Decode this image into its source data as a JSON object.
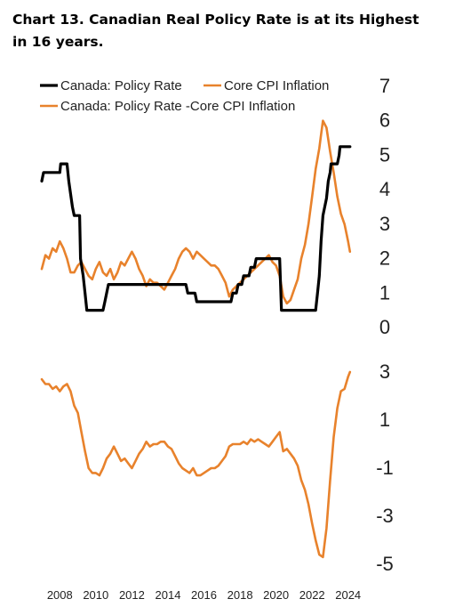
{
  "title": "Chart 13. Canadian Real Policy Rate is at its Highest in 16 years.",
  "colors": {
    "policy": "#000000",
    "core": "#E8822C",
    "real": "#E8822C"
  },
  "chart_data": [
    {
      "type": "line",
      "panel": "top",
      "title": "",
      "ylim": [
        0,
        7
      ],
      "yticks": [
        "0",
        "1",
        "2",
        "3",
        "4",
        "5",
        "6",
        "7"
      ],
      "axis_side": "right",
      "legend_position": "top-left",
      "grid": false,
      "series": [
        {
          "name": "Canada: Policy Rate",
          "color": "#000000",
          "points": [
            [
              2007.0,
              4.25
            ],
            [
              2007.1,
              4.5
            ],
            [
              2007.6,
              4.5
            ],
            [
              2008.0,
              4.5
            ],
            [
              2008.05,
              4.75
            ],
            [
              2008.4,
              4.75
            ],
            [
              2008.5,
              4.25
            ],
            [
              2008.7,
              3.5
            ],
            [
              2008.8,
              3.25
            ],
            [
              2009.1,
              3.25
            ],
            [
              2009.15,
              2.0
            ],
            [
              2009.3,
              1.5
            ],
            [
              2009.4,
              1.0
            ],
            [
              2009.5,
              0.5
            ],
            [
              2009.6,
              0.5
            ],
            [
              2010.4,
              0.5
            ],
            [
              2010.5,
              0.75
            ],
            [
              2010.6,
              1.0
            ],
            [
              2010.7,
              1.25
            ],
            [
              2015.0,
              1.25
            ],
            [
              2015.1,
              1.0
            ],
            [
              2015.5,
              1.0
            ],
            [
              2015.6,
              0.75
            ],
            [
              2017.5,
              0.75
            ],
            [
              2017.6,
              1.0
            ],
            [
              2017.8,
              1.0
            ],
            [
              2017.9,
              1.25
            ],
            [
              2018.1,
              1.25
            ],
            [
              2018.2,
              1.5
            ],
            [
              2018.5,
              1.5
            ],
            [
              2018.6,
              1.75
            ],
            [
              2018.8,
              1.75
            ],
            [
              2018.9,
              2.0
            ],
            [
              2020.2,
              2.0
            ],
            [
              2020.25,
              1.25
            ],
            [
              2020.3,
              0.5
            ],
            [
              2022.2,
              0.5
            ],
            [
              2022.3,
              1.0
            ],
            [
              2022.4,
              1.5
            ],
            [
              2022.5,
              2.5
            ],
            [
              2022.6,
              3.25
            ],
            [
              2022.8,
              3.75
            ],
            [
              2022.9,
              4.25
            ],
            [
              2023.0,
              4.5
            ],
            [
              2023.05,
              4.75
            ],
            [
              2023.4,
              4.75
            ],
            [
              2023.5,
              5.0
            ],
            [
              2023.55,
              5.25
            ],
            [
              2024.1,
              5.25
            ]
          ]
        },
        {
          "name": "Core CPI Inflation",
          "color": "#E8822C",
          "points": [
            [
              2007.0,
              1.7
            ],
            [
              2007.2,
              2.1
            ],
            [
              2007.4,
              2.0
            ],
            [
              2007.6,
              2.3
            ],
            [
              2007.8,
              2.2
            ],
            [
              2008.0,
              2.5
            ],
            [
              2008.2,
              2.3
            ],
            [
              2008.4,
              2.0
            ],
            [
              2008.6,
              1.6
            ],
            [
              2008.8,
              1.6
            ],
            [
              2009.0,
              1.8
            ],
            [
              2009.2,
              1.9
            ],
            [
              2009.4,
              1.7
            ],
            [
              2009.6,
              1.5
            ],
            [
              2009.8,
              1.4
            ],
            [
              2010.0,
              1.7
            ],
            [
              2010.2,
              1.9
            ],
            [
              2010.4,
              1.6
            ],
            [
              2010.6,
              1.5
            ],
            [
              2010.8,
              1.7
            ],
            [
              2011.0,
              1.4
            ],
            [
              2011.2,
              1.6
            ],
            [
              2011.4,
              1.9
            ],
            [
              2011.6,
              1.8
            ],
            [
              2011.8,
              2.0
            ],
            [
              2012.0,
              2.2
            ],
            [
              2012.2,
              2.0
            ],
            [
              2012.4,
              1.7
            ],
            [
              2012.6,
              1.5
            ],
            [
              2012.8,
              1.2
            ],
            [
              2013.0,
              1.4
            ],
            [
              2013.2,
              1.3
            ],
            [
              2013.4,
              1.3
            ],
            [
              2013.6,
              1.2
            ],
            [
              2013.8,
              1.1
            ],
            [
              2014.0,
              1.3
            ],
            [
              2014.2,
              1.5
            ],
            [
              2014.4,
              1.7
            ],
            [
              2014.6,
              2.0
            ],
            [
              2014.8,
              2.2
            ],
            [
              2015.0,
              2.3
            ],
            [
              2015.2,
              2.2
            ],
            [
              2015.4,
              2.0
            ],
            [
              2015.6,
              2.2
            ],
            [
              2015.8,
              2.1
            ],
            [
              2016.0,
              2.0
            ],
            [
              2016.2,
              1.9
            ],
            [
              2016.4,
              1.8
            ],
            [
              2016.6,
              1.8
            ],
            [
              2016.8,
              1.7
            ],
            [
              2017.0,
              1.5
            ],
            [
              2017.2,
              1.3
            ],
            [
              2017.4,
              0.9
            ],
            [
              2017.6,
              1.1
            ],
            [
              2017.8,
              1.2
            ],
            [
              2018.0,
              1.3
            ],
            [
              2018.2,
              1.4
            ],
            [
              2018.4,
              1.5
            ],
            [
              2018.6,
              1.6
            ],
            [
              2018.8,
              1.7
            ],
            [
              2019.0,
              1.8
            ],
            [
              2019.2,
              1.9
            ],
            [
              2019.4,
              2.0
            ],
            [
              2019.6,
              2.1
            ],
            [
              2019.8,
              1.9
            ],
            [
              2020.0,
              1.8
            ],
            [
              2020.2,
              1.5
            ],
            [
              2020.4,
              0.9
            ],
            [
              2020.6,
              0.7
            ],
            [
              2020.8,
              0.8
            ],
            [
              2021.0,
              1.1
            ],
            [
              2021.2,
              1.4
            ],
            [
              2021.4,
              2.0
            ],
            [
              2021.6,
              2.4
            ],
            [
              2021.8,
              3.0
            ],
            [
              2022.0,
              3.8
            ],
            [
              2022.2,
              4.6
            ],
            [
              2022.4,
              5.2
            ],
            [
              2022.5,
              5.6
            ],
            [
              2022.6,
              6.0
            ],
            [
              2022.8,
              5.8
            ],
            [
              2023.0,
              5.1
            ],
            [
              2023.2,
              4.5
            ],
            [
              2023.4,
              3.8
            ],
            [
              2023.6,
              3.3
            ],
            [
              2023.8,
              3.0
            ],
            [
              2024.0,
              2.5
            ],
            [
              2024.1,
              2.2
            ]
          ]
        }
      ]
    },
    {
      "type": "line",
      "panel": "bottom",
      "title": "",
      "ylim": [
        -5,
        3
      ],
      "yticks": [
        "3",
        "1",
        "-1",
        "-3",
        "-5"
      ],
      "axis_side": "right",
      "grid": false,
      "series": [
        {
          "name": "Canada: Policy Rate -Core CPI Inflation",
          "color": "#E8822C",
          "points": [
            [
              2007.0,
              2.7
            ],
            [
              2007.2,
              2.5
            ],
            [
              2007.4,
              2.5
            ],
            [
              2007.6,
              2.3
            ],
            [
              2007.8,
              2.4
            ],
            [
              2008.0,
              2.2
            ],
            [
              2008.2,
              2.4
            ],
            [
              2008.4,
              2.5
            ],
            [
              2008.6,
              2.2
            ],
            [
              2008.8,
              1.6
            ],
            [
              2009.0,
              1.3
            ],
            [
              2009.2,
              0.5
            ],
            [
              2009.4,
              -0.3
            ],
            [
              2009.6,
              -1.0
            ],
            [
              2009.8,
              -1.2
            ],
            [
              2010.0,
              -1.2
            ],
            [
              2010.2,
              -1.3
            ],
            [
              2010.4,
              -1.0
            ],
            [
              2010.6,
              -0.6
            ],
            [
              2010.8,
              -0.4
            ],
            [
              2011.0,
              -0.1
            ],
            [
              2011.2,
              -0.4
            ],
            [
              2011.4,
              -0.7
            ],
            [
              2011.6,
              -0.6
            ],
            [
              2011.8,
              -0.8
            ],
            [
              2012.0,
              -1.0
            ],
            [
              2012.2,
              -0.7
            ],
            [
              2012.4,
              -0.4
            ],
            [
              2012.6,
              -0.2
            ],
            [
              2012.8,
              0.1
            ],
            [
              2013.0,
              -0.1
            ],
            [
              2013.2,
              0.0
            ],
            [
              2013.4,
              0.0
            ],
            [
              2013.6,
              0.1
            ],
            [
              2013.8,
              0.1
            ],
            [
              2014.0,
              -0.1
            ],
            [
              2014.2,
              -0.2
            ],
            [
              2014.4,
              -0.5
            ],
            [
              2014.6,
              -0.8
            ],
            [
              2014.8,
              -1.0
            ],
            [
              2015.0,
              -1.1
            ],
            [
              2015.2,
              -1.2
            ],
            [
              2015.4,
              -1.0
            ],
            [
              2015.6,
              -1.3
            ],
            [
              2015.8,
              -1.3
            ],
            [
              2016.0,
              -1.2
            ],
            [
              2016.2,
              -1.1
            ],
            [
              2016.4,
              -1.0
            ],
            [
              2016.6,
              -1.0
            ],
            [
              2016.8,
              -0.9
            ],
            [
              2017.0,
              -0.7
            ],
            [
              2017.2,
              -0.5
            ],
            [
              2017.4,
              -0.1
            ],
            [
              2017.6,
              0.0
            ],
            [
              2017.8,
              0.0
            ],
            [
              2018.0,
              0.0
            ],
            [
              2018.2,
              0.1
            ],
            [
              2018.4,
              0.0
            ],
            [
              2018.6,
              0.2
            ],
            [
              2018.8,
              0.1
            ],
            [
              2019.0,
              0.2
            ],
            [
              2019.2,
              0.1
            ],
            [
              2019.4,
              0.0
            ],
            [
              2019.6,
              -0.1
            ],
            [
              2019.8,
              0.1
            ],
            [
              2020.0,
              0.3
            ],
            [
              2020.2,
              0.5
            ],
            [
              2020.4,
              -0.3
            ],
            [
              2020.6,
              -0.2
            ],
            [
              2020.8,
              -0.4
            ],
            [
              2021.0,
              -0.6
            ],
            [
              2021.2,
              -0.9
            ],
            [
              2021.4,
              -1.5
            ],
            [
              2021.6,
              -1.9
            ],
            [
              2021.8,
              -2.5
            ],
            [
              2022.0,
              -3.3
            ],
            [
              2022.2,
              -4.0
            ],
            [
              2022.4,
              -4.6
            ],
            [
              2022.6,
              -4.7
            ],
            [
              2022.8,
              -3.5
            ],
            [
              2023.0,
              -1.5
            ],
            [
              2023.2,
              0.3
            ],
            [
              2023.4,
              1.5
            ],
            [
              2023.6,
              2.2
            ],
            [
              2023.8,
              2.3
            ],
            [
              2024.0,
              2.8
            ],
            [
              2024.1,
              3.0
            ]
          ]
        }
      ]
    }
  ],
  "x_axis": {
    "xlim": [
      2007,
      2024.9
    ],
    "ticks": [
      {
        "value": 2008,
        "label": "2008"
      },
      {
        "value": 2010,
        "label": "2010"
      },
      {
        "value": 2012,
        "label": "2012"
      },
      {
        "value": 2014,
        "label": "2014"
      },
      {
        "value": 2016,
        "label": "2016"
      },
      {
        "value": 2018,
        "label": "2018"
      },
      {
        "value": 2020,
        "label": "2020"
      },
      {
        "value": 2022,
        "label": "2022"
      },
      {
        "value": 2024,
        "label": "2024"
      }
    ]
  }
}
